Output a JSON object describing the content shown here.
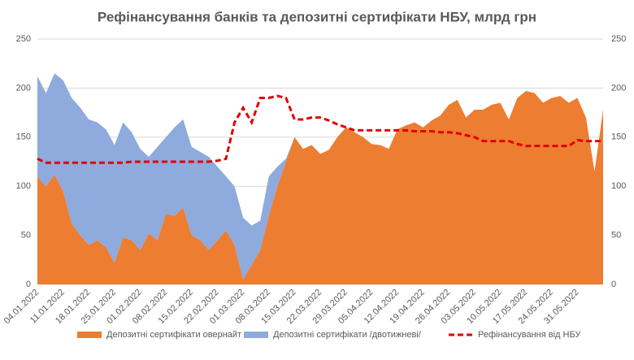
{
  "chart_data": {
    "type": "area-line",
    "title": "Рефінансування банків та депозитні сертифікати НБУ, млрд грн",
    "categories": [
      "04.01.2022",
      null,
      null,
      "11.01.2022",
      null,
      null,
      "18.01.2022",
      null,
      null,
      "25.01.2022",
      null,
      null,
      "01.02.2022",
      null,
      null,
      "08.02.2022",
      null,
      null,
      "15.02.2022",
      null,
      null,
      "22.02.2022",
      null,
      null,
      "01.03.2022",
      null,
      null,
      "08.03.2022",
      null,
      null,
      "15.03.2022",
      null,
      null,
      "22.03.2022",
      null,
      null,
      "29.03.2022",
      null,
      null,
      "05.04.2022",
      null,
      null,
      "12.04.2022",
      null,
      null,
      "19.04.2022",
      null,
      null,
      "26.04.2022",
      null,
      null,
      "03.05.2022",
      null,
      null,
      "10.05.2022",
      null,
      null,
      "17.05.2022",
      null,
      null,
      "24.05.2022",
      null,
      null,
      "31.05.2022",
      null,
      null,
      null
    ],
    "series": [
      {
        "name": "Депозитні сертифікати овернайт",
        "color": "#ed7d31",
        "stack": true,
        "values": [
          110,
          100,
          112,
          95,
          62,
          50,
          40,
          45,
          38,
          22,
          48,
          45,
          35,
          52,
          45,
          72,
          70,
          78,
          50,
          45,
          35,
          45,
          55,
          40,
          5,
          20,
          35,
          70,
          100,
          125,
          150,
          138,
          142,
          133,
          137,
          150,
          160,
          155,
          150,
          143,
          142,
          138,
          158,
          162,
          165,
          160,
          167,
          172,
          183,
          188,
          170,
          178,
          178,
          183,
          185,
          168,
          190,
          197,
          195,
          185,
          190,
          192,
          185,
          190,
          170,
          115,
          178
        ]
      },
      {
        "name": "Депозитні сертифікати /двотижневі/",
        "color": "#8faadc",
        "stack": true,
        "values": [
          102,
          95,
          103,
          113,
          128,
          130,
          128,
          120,
          120,
          120,
          117,
          110,
          103,
          78,
          95,
          78,
          90,
          90,
          90,
          90,
          95,
          75,
          55,
          60,
          63,
          40,
          30,
          40,
          20,
          3,
          0,
          0,
          0,
          0,
          0,
          0,
          0,
          0,
          0,
          0,
          0,
          0,
          0,
          0,
          0,
          0,
          0,
          0,
          0,
          0,
          0,
          0,
          0,
          0,
          0,
          0,
          0,
          0,
          0,
          0,
          0,
          0,
          0,
          0,
          0,
          0,
          0
        ]
      },
      {
        "name": "Рефінансування від НБУ",
        "color": "#e00000",
        "axis": "y2",
        "dashed": true,
        "values": [
          128,
          124,
          124,
          124,
          124,
          124,
          124,
          124,
          124,
          124,
          124,
          125,
          125,
          125,
          125,
          125,
          125,
          125,
          125,
          125,
          125,
          126,
          128,
          165,
          180,
          165,
          190,
          190,
          192,
          190,
          168,
          168,
          170,
          170,
          167,
          163,
          160,
          157,
          157,
          157,
          157,
          157,
          157,
          157,
          156,
          156,
          156,
          155,
          155,
          154,
          152,
          150,
          146,
          146,
          146,
          146,
          143,
          141,
          141,
          141,
          141,
          141,
          141,
          147,
          146,
          146,
          146
        ]
      }
    ],
    "ylim": [
      0,
      250
    ],
    "yticks": [
      0,
      50,
      100,
      150,
      200,
      250
    ],
    "y2lim": [
      0,
      250
    ],
    "y2ticks": [
      0,
      50,
      100,
      150,
      200,
      250
    ],
    "grid": true,
    "legend": "bottom"
  }
}
